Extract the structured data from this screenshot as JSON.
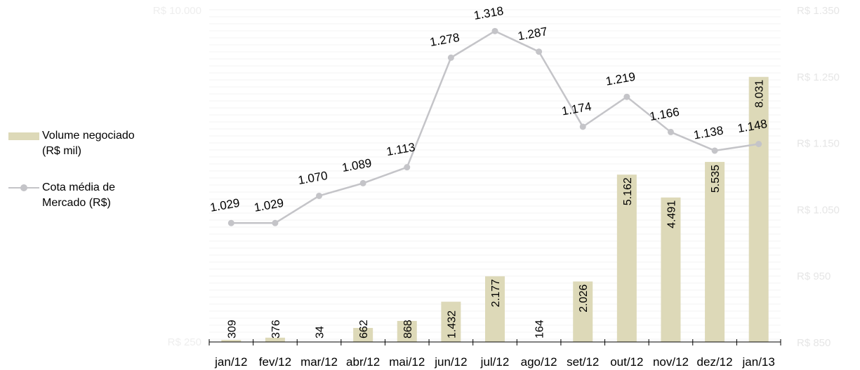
{
  "chart_data": {
    "type": "bar",
    "categories": [
      "jan/12",
      "fev/12",
      "mar/12",
      "abr/12",
      "mai/12",
      "jun/12",
      "jul/12",
      "ago/12",
      "set/12",
      "out/12",
      "nov/12",
      "dez/12",
      "jan/13"
    ],
    "series": [
      {
        "name": "Volume negociado (R$ mil)",
        "chart_type": "bar",
        "axis": "left",
        "values": [
          309,
          376,
          34,
          662,
          868,
          1432,
          2177,
          164,
          2026,
          5162,
          4491,
          5535,
          8031
        ],
        "labels": [
          "309",
          "376",
          "34",
          "662",
          "868",
          "1.432",
          "2.177",
          "164",
          "2.026",
          "5.162",
          "4.491",
          "5.535",
          "8.031"
        ],
        "color": "#ddd9b8"
      },
      {
        "name": "Cota média de Mercado (R$)",
        "chart_type": "line",
        "axis": "right",
        "values": [
          1029,
          1029,
          1070,
          1089,
          1113,
          1278,
          1318,
          1287,
          1174,
          1219,
          1166,
          1138,
          1148
        ],
        "labels": [
          "1.029",
          "1.029",
          "1.070",
          "1.089",
          "1.113",
          "1.278",
          "1.318",
          "1.287",
          "1.174",
          "1.219",
          "1.166",
          "1.138",
          "1.148"
        ],
        "color": "#c4c4c8"
      }
    ],
    "left_axis": {
      "ylim": [
        250,
        10000
      ],
      "tick_top_label": "R$ 10.000",
      "tick_bottom_label": "R$ 250"
    },
    "right_axis": {
      "ylim": [
        850,
        1350
      ],
      "ticks": [
        1350,
        1250,
        1150,
        1050,
        950,
        850
      ],
      "tick_labels": [
        "R$ 1.350",
        "R$ 1.250",
        "R$ 1.150",
        "R$ 1.050",
        "R$ 950",
        "R$ 850"
      ]
    },
    "legend": {
      "position": "left",
      "items": [
        {
          "label_line1": "Volume negociado",
          "label_line2": "(R$ mil)"
        },
        {
          "label_line1": "Cota média de",
          "label_line2": "Mercado (R$)"
        }
      ]
    },
    "grid": true
  }
}
